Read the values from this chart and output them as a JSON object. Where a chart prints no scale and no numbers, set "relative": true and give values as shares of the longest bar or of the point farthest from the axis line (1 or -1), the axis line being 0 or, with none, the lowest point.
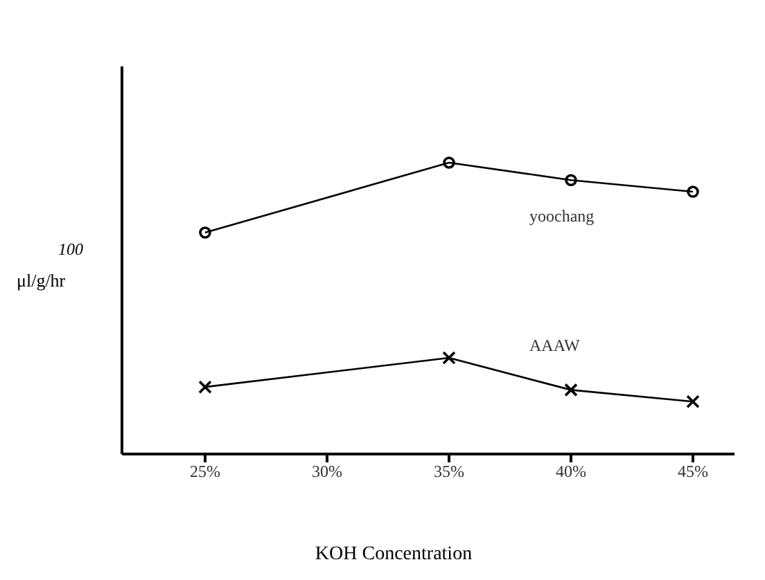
{
  "chart_data": {
    "type": "line",
    "relative": true,
    "xlabel": "KOH Concentration",
    "ylabel": "μl/g/hr",
    "annotations": [
      "100"
    ],
    "categories": [
      "25%",
      "30%",
      "35%",
      "40%",
      "45%"
    ],
    "series": [
      {
        "name": "yoochang",
        "color": "#000000",
        "marker": "circle",
        "values": [
          0.76,
          null,
          1,
          0.94,
          0.9
        ]
      },
      {
        "name": "AAAW",
        "color": "#000000",
        "marker": "cross",
        "values": [
          0.23,
          null,
          0.33,
          0.22,
          0.18
        ]
      }
    ],
    "grid": false,
    "legend": false
  }
}
